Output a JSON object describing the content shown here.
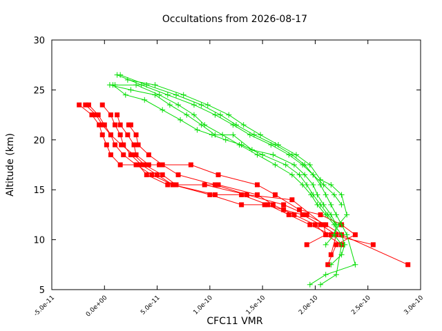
{
  "chart_data": {
    "type": "line",
    "title": "Occultations from 2026-08-17",
    "xlabel": "CFC11 VMR",
    "ylabel": "Altitude (km)",
    "xlim": [
      -5e-11,
      3e-10
    ],
    "ylim": [
      5,
      30
    ],
    "x_tick_labels": [
      "-5.0e-11",
      "0.0e+00",
      "5.0e-11",
      "1.0e-10",
      "1.5e-10",
      "2.0e-10",
      "2.5e-10",
      "3.0e-10"
    ],
    "x_tick_values": [
      -5e-11,
      0,
      5e-11,
      1e-10,
      1.5e-10,
      2e-10,
      2.5e-10,
      3e-10
    ],
    "y_tick_labels": [
      "5",
      "10",
      "15",
      "20",
      "25",
      "30"
    ],
    "y_tick_values": [
      5,
      10,
      15,
      20,
      25,
      30
    ],
    "grid": false,
    "legend": "none",
    "colors": {
      "red": "#ff0000",
      "green": "#00dd00",
      "axis": "#000000"
    },
    "series": [
      {
        "color": "#ff0000",
        "marker": "square",
        "x": [
          -2.4e-11,
          -1.2e-11,
          -5e-12,
          -2e-12,
          2e-12,
          6e-12,
          1.5e-11,
          3.2e-11,
          4e-11,
          6e-11,
          9.5e-11,
          1.35e-10,
          1.7e-10,
          1.92e-10,
          2.1e-10,
          2.25e-10,
          2.88e-10
        ],
        "y": [
          23.5,
          22.5,
          21.5,
          20.5,
          19.5,
          18.5,
          17.5,
          17.5,
          16.5,
          15.5,
          15.5,
          14.5,
          13.5,
          12.5,
          11.5,
          10.5,
          7.5
        ]
      },
      {
        "color": "#ff0000",
        "marker": "square",
        "x": [
          -1.5e-11,
          -6e-12,
          0,
          6e-12,
          1e-11,
          1.8e-11,
          3e-11,
          4.5e-11,
          6.5e-11,
          1.05e-10,
          1.3e-10,
          1.55e-10,
          1.75e-10,
          1.95e-10,
          2.15e-10,
          2.55e-10
        ],
        "y": [
          23.5,
          22.5,
          21.5,
          20.5,
          19.5,
          18.5,
          17.5,
          16.5,
          15.5,
          14.5,
          14.5,
          13.5,
          12.5,
          11.5,
          10.5,
          9.5
        ]
      },
      {
        "color": "#ff0000",
        "marker": "square",
        "x": [
          -2e-12,
          6e-12,
          1e-11,
          1.5e-11,
          1.8e-11,
          2.5e-11,
          3.5e-11,
          5e-11,
          6.5e-11,
          1e-10,
          1.3e-10,
          1.52e-10,
          1.7e-10,
          1.88e-10,
          2.05e-10,
          2.2e-10,
          2.15e-10
        ],
        "y": [
          23.5,
          22.5,
          21.5,
          20.5,
          19.5,
          18.5,
          17.5,
          16.5,
          15.5,
          14.5,
          13.5,
          13.5,
          13,
          12.5,
          11.5,
          10.5,
          8.5
        ]
      },
      {
        "color": "#ff0000",
        "marker": "square",
        "x": [
          -1.8e-11,
          -8e-12,
          -2e-12,
          6e-12,
          1.6e-11,
          2.8e-11,
          3.8e-11,
          5.5e-11,
          6.8e-11,
          1.08e-10,
          1.45e-10,
          1.6e-10,
          1.8e-10,
          2e-10,
          2.1e-10,
          2.25e-10
        ],
        "y": [
          23.5,
          22.5,
          21.5,
          20.5,
          19.5,
          18.5,
          17.5,
          16.5,
          15.5,
          15.5,
          14.5,
          13.5,
          12.5,
          11.5,
          10.5,
          9.5
        ]
      },
      {
        "color": "#ff0000",
        "marker": "square",
        "x": [
          1.2e-11,
          1.5e-11,
          2.2e-11,
          2.8e-11,
          3e-11,
          4.2e-11,
          5.2e-11,
          8.2e-11,
          1.08e-10,
          1.45e-10,
          1.62e-10,
          1.85e-10,
          2.05e-10,
          2.25e-10,
          2.38e-10,
          2.2e-10,
          2.12e-10
        ],
        "y": [
          22.5,
          21.5,
          20.5,
          19.5,
          18.5,
          17.5,
          17.5,
          17.5,
          16.5,
          15.5,
          14.5,
          13,
          12.5,
          11.5,
          10.5,
          9.5,
          7.5
        ]
      },
      {
        "color": "#ff0000",
        "marker": "square",
        "x": [
          2.5e-11,
          2.3e-11,
          3e-11,
          3.2e-11,
          4.2e-11,
          5.5e-11,
          7e-11,
          1.05e-10,
          1.35e-10,
          1.78e-10,
          2.08e-10,
          2.1e-10,
          1.92e-10
        ],
        "y": [
          21.5,
          21.5,
          20.5,
          19.5,
          18.5,
          17.5,
          16.5,
          15.5,
          14.5,
          14,
          11.5,
          10.5,
          9.5
        ]
      },
      {
        "color": "#00dd00",
        "marker": "plus",
        "x": [
          1.5e-11,
          4e-11,
          6.8e-11,
          9.2e-11,
          1.1e-10,
          1.25e-10,
          1.42e-10,
          1.62e-10,
          1.78e-10,
          1.9e-10,
          1.98e-10,
          2.05e-10,
          2.1e-10,
          2.15e-10,
          2.2e-10,
          2.25e-10,
          2.3e-10,
          2.38e-10,
          2.1e-10,
          1.95e-10
        ],
        "y": [
          26.5,
          25.5,
          24.5,
          23.5,
          22.5,
          21.5,
          20.5,
          19.5,
          18.5,
          17.5,
          16.5,
          15.5,
          14.5,
          13.5,
          12.5,
          11.5,
          10.5,
          7.5,
          6.5,
          5.5
        ]
      },
      {
        "color": "#00dd00",
        "marker": "plus",
        "x": [
          1.2e-11,
          3.5e-11,
          6e-11,
          8.5e-11,
          1.05e-10,
          1.22e-10,
          1.38e-10,
          1.58e-10,
          1.75e-10,
          1.88e-10,
          1.98e-10,
          2.08e-10,
          2.18e-10,
          2.25e-10
        ],
        "y": [
          26.5,
          25.5,
          24.5,
          23.5,
          22.5,
          21.5,
          20.5,
          19.5,
          18.5,
          17.5,
          16.5,
          15.5,
          14.5,
          13.5
        ]
      },
      {
        "color": "#00dd00",
        "marker": "plus",
        "x": [
          2.2e-11,
          4.8e-11,
          7.5e-11,
          9.8e-11,
          1.18e-10,
          1.32e-10,
          1.48e-10,
          1.65e-10,
          1.82e-10,
          1.95e-10,
          2.05e-10,
          2.15e-10,
          2.25e-10,
          2.3e-10,
          2.22e-10,
          2.18e-10,
          2.25e-10,
          2.2e-10,
          2.05e-10
        ],
        "y": [
          26,
          25.5,
          24.5,
          23.5,
          22.5,
          21.5,
          20.5,
          19.5,
          18.5,
          17.5,
          16,
          15.5,
          14.5,
          12.5,
          11.5,
          10.5,
          9.5,
          6.5,
          5.5
        ]
      },
      {
        "color": "#00dd00",
        "marker": "plus",
        "x": [
          1e-11,
          3e-11,
          5.2e-11,
          7e-11,
          8.5e-11,
          9.5e-11,
          1.12e-10,
          1.28e-10,
          1.45e-10,
          1.62e-10,
          1.78e-10,
          1.88e-10,
          1.96e-10,
          2.02e-10,
          2.1e-10,
          2.18e-10,
          2.25e-10,
          2.28e-10,
          2.25e-10,
          2.15e-10
        ],
        "y": [
          25.5,
          25.5,
          24.5,
          23.5,
          22.5,
          21.5,
          20.5,
          19.5,
          18.5,
          17.5,
          16.5,
          15.5,
          14.5,
          13.5,
          12.5,
          11.5,
          10.5,
          9.5,
          8.5,
          7.5
        ]
      },
      {
        "color": "#00dd00",
        "marker": "plus",
        "x": [
          5e-12,
          2.5e-11,
          4.8e-11,
          6.2e-11,
          7.8e-11,
          9.2e-11,
          1.05e-10,
          1.22e-10,
          1.4e-10,
          1.6e-10,
          1.8e-10,
          1.9e-10,
          1.98e-10,
          2.02e-10,
          2.08e-10,
          2.15e-10,
          2.2e-10,
          2.18e-10,
          2.1e-10
        ],
        "y": [
          25.5,
          25,
          24.5,
          23.5,
          22.5,
          21.5,
          20.5,
          20.5,
          19,
          18.5,
          17.5,
          16.5,
          15.5,
          14.5,
          13.5,
          12.5,
          11.5,
          10.5,
          9.5
        ]
      },
      {
        "color": "#00dd00",
        "marker": "plus",
        "x": [
          8e-12,
          2e-11,
          3.8e-11,
          5.5e-11,
          7.2e-11,
          8.8e-11,
          1.02e-10,
          1.15e-10,
          1.3e-10,
          1.5e-10,
          1.72e-10,
          1.85e-10,
          1.92e-10,
          1.98e-10,
          2.05e-10,
          2.12e-10,
          2.2e-10
        ],
        "y": [
          25.5,
          24.5,
          24,
          23,
          22,
          21,
          20.5,
          20,
          19.5,
          18.5,
          17.5,
          16.5,
          15.5,
          14.5,
          13.5,
          12.5,
          11.5
        ]
      }
    ]
  }
}
